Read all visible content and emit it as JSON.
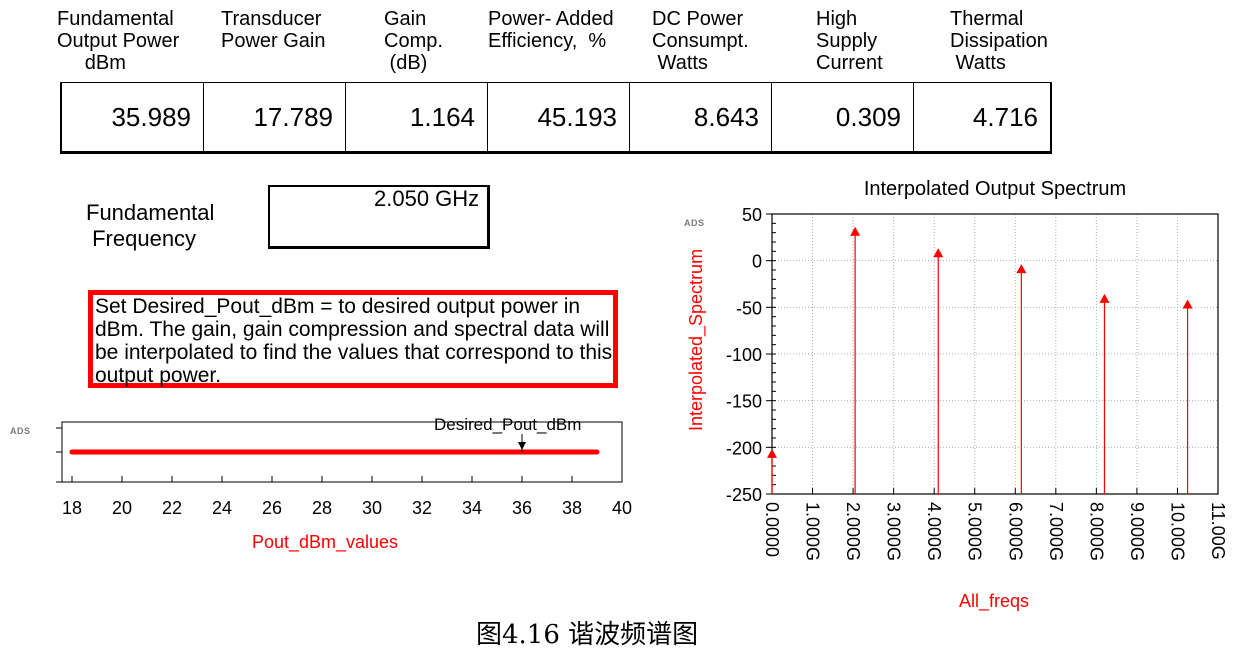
{
  "table": {
    "headers": [
      "Fundamental\nOutput Power\n     dBm",
      "Transducer\nPower Gain",
      "Gain\nComp.\n (dB)",
      "Power- Added\nEfficiency,  %",
      "DC Power\nConsumpt.\n Watts",
      "High\nSupply\nCurrent",
      "Thermal\nDissipation\n Watts"
    ],
    "values": [
      "35.989",
      "17.789",
      "1.164",
      "45.193",
      "8.643",
      "0.309",
      "4.716"
    ]
  },
  "fundamental": {
    "label": "Fundamental\n Frequency",
    "value": "2.050 GHz"
  },
  "note": {
    "text": "Set Desired_Pout_dBm = to desired output power in dBm.  The gain, gain compression and spectral data will be interpolated to find the values that correspond to this output power."
  },
  "ads_badge": "ADS",
  "slider": {
    "marker_label": "Desired_Pout_dBm",
    "marker_value": 36,
    "xlabel": "Pout_dBm_values",
    "xmin": 18,
    "xmax": 40,
    "ticks": [
      "18",
      "20",
      "22",
      "24",
      "26",
      "28",
      "30",
      "32",
      "34",
      "36",
      "38",
      "40"
    ],
    "range_start": 18,
    "range_end": 39,
    "color": "#ff0000"
  },
  "chart_data": {
    "type": "scatter",
    "title": "Interpolated Output Spectrum",
    "xlabel": "All_freqs",
    "ylabel": "Interpolated_Spectrum",
    "xlim": [
      0,
      11
    ],
    "ylim": [
      -250,
      50
    ],
    "x_ticks": [
      "0.0000",
      "1.000G",
      "2.000G",
      "3.000G",
      "4.000G",
      "5.000G",
      "6.000G",
      "7.000G",
      "8.000G",
      "9.000G",
      "10.00G",
      "11.00G"
    ],
    "y_ticks": [
      "50",
      "0",
      "-50",
      "-100",
      "-150",
      "-200",
      "-250"
    ],
    "series": [
      {
        "x": [
          0,
          2.05,
          4.1,
          6.15,
          8.2,
          10.25
        ],
        "y": [
          -207,
          31,
          8,
          -9,
          -41,
          -47
        ]
      }
    ],
    "color": "#ff0000",
    "grid": true
  },
  "caption": "图4.16  谐波频谱图"
}
